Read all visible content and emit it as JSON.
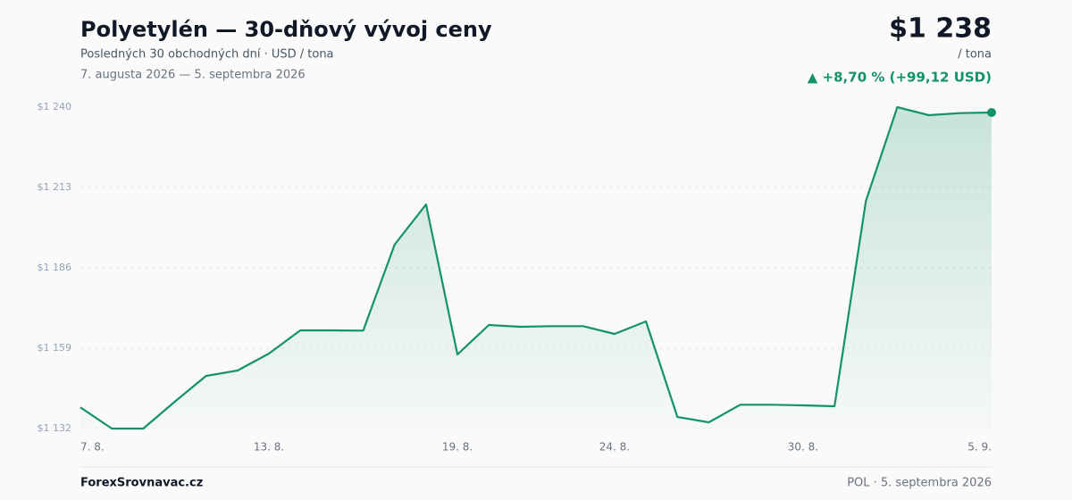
{
  "chart_data": {
    "type": "line",
    "title": "Polyetylén — 30-dňový vývoj ceny",
    "subtitle": "Posledných 30 obchodných dní · USD / tona",
    "date_range": "7. augusta 2026 — 5. septembra 2026",
    "price": "$1 238",
    "price_unit": "/ tona",
    "change": "▲ +8,70 % (+99,12 USD)",
    "source": "ForexSrovnavac.cz",
    "footer_note": "POL · 5. septembra 2026",
    "categories": [
      "7. 8.",
      null,
      null,
      null,
      null,
      null,
      "13. 8.",
      null,
      null,
      null,
      null,
      null,
      "19. 8.",
      null,
      null,
      null,
      null,
      "24. 8.",
      null,
      null,
      null,
      null,
      null,
      "30. 8.",
      null,
      null,
      null,
      null,
      null,
      "5. 9."
    ],
    "values": [
      1139.1,
      1132,
      1132,
      1141,
      1149.7,
      1151.5,
      1157.2,
      1165,
      1165,
      1164.9,
      1193.8,
      1207.3,
      1156.9,
      1166.8,
      1166.2,
      1166.4,
      1166.4,
      1163.8,
      1168,
      1135.9,
      1134.1,
      1140,
      1140,
      1139.8,
      1139.5,
      1208.5,
      1240,
      1237.3,
      1238,
      1238.2
    ],
    "color": "#14936a",
    "ylim": [
      1132,
      1240
    ],
    "yticks": [
      {
        "value": 1132,
        "label": "$1 132"
      },
      {
        "value": 1159,
        "label": "$1 159"
      },
      {
        "value": 1186,
        "label": "$1 186"
      },
      {
        "value": 1213,
        "label": "$1 213"
      },
      {
        "value": 1240,
        "label": "$1 240"
      }
    ],
    "grid": true
  }
}
